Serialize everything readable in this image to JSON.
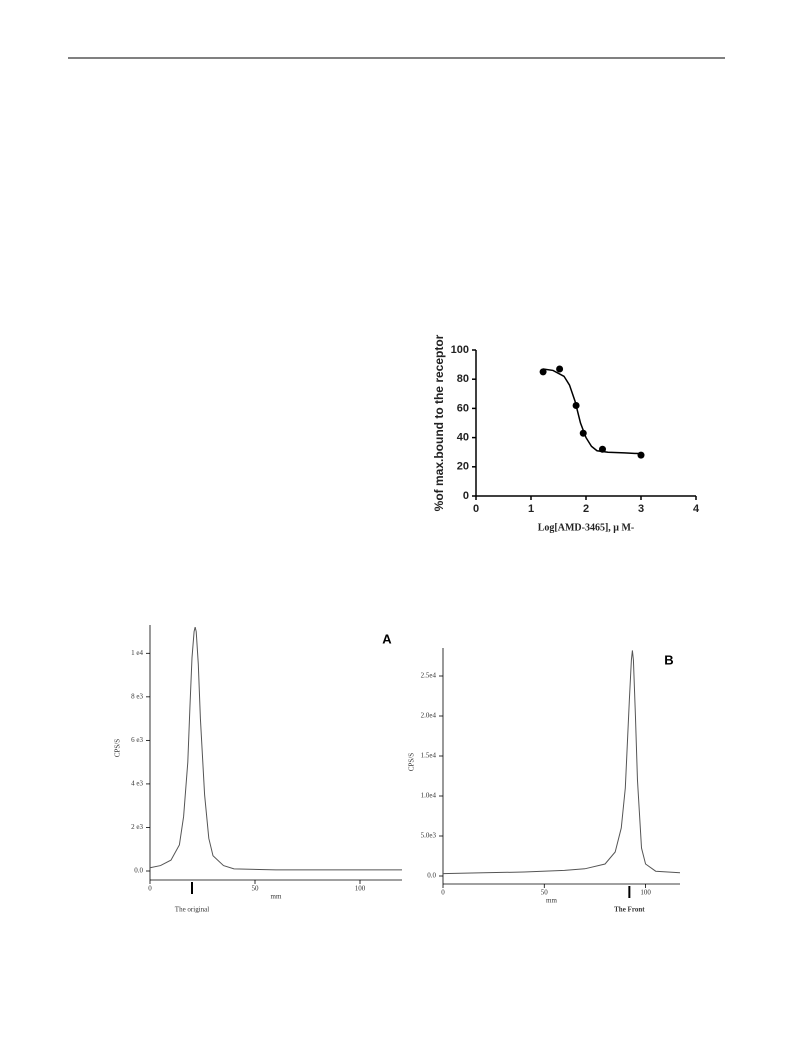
{
  "chart_data": [
    {
      "type": "scatter",
      "ylabel": "%of max.bound to the receptor",
      "xlabel": "Log[AMD-3465], μ M-",
      "x": [
        1.22,
        1.52,
        1.82,
        1.95,
        2.3,
        3.0
      ],
      "values": [
        85,
        87,
        62,
        43,
        32,
        28
      ],
      "fit": {
        "x": [
          1.22,
          1.4,
          1.6,
          1.7,
          1.8,
          1.9,
          2.0,
          2.1,
          2.2,
          2.4,
          2.7,
          3.0
        ],
        "values": [
          87,
          86,
          82,
          76,
          65,
          50,
          40,
          34,
          31,
          30,
          29.5,
          29
        ]
      },
      "color": "#000000",
      "xlim": [
        0,
        4
      ],
      "xticks": [
        0,
        1,
        2,
        3,
        4
      ],
      "ylim": [
        0,
        100
      ],
      "yticks": [
        0,
        20,
        40,
        60,
        80,
        100
      ]
    },
    {
      "type": "line",
      "panel_label": "A",
      "ylabel": "CPS/S",
      "xlabel": "mm",
      "annotation": "The original",
      "annotation_x": 20,
      "x": [
        0,
        5,
        10,
        14,
        16,
        18,
        19,
        20,
        21,
        21.5,
        22,
        23,
        24,
        26,
        28,
        30,
        35,
        40,
        60,
        120
      ],
      "values": [
        150,
        250,
        500,
        1200,
        2500,
        5000,
        7500,
        9800,
        11000,
        11200,
        11000,
        9500,
        7000,
        3500,
        1500,
        700,
        250,
        100,
        50,
        50
      ],
      "color": "#555555",
      "xlim": [
        0,
        120
      ],
      "xticks": [
        0,
        50,
        100
      ],
      "ylim": [
        0,
        11300
      ],
      "yticks": [
        {
          "value": 0,
          "label": "0.0"
        },
        {
          "value": 2000,
          "label": "2 e3"
        },
        {
          "value": 4000,
          "label": "4 e3"
        },
        {
          "value": 6000,
          "label": "6 e3"
        },
        {
          "value": 8000,
          "label": "8 e3"
        },
        {
          "value": 10000,
          "label": "1 e4"
        }
      ]
    },
    {
      "type": "line",
      "panel_label": "B",
      "ylabel": "CPS/S",
      "xlabel": "mm",
      "annotation": "The Front",
      "annotation_x": 92,
      "x": [
        0,
        20,
        40,
        60,
        70,
        80,
        85,
        88,
        90,
        92,
        93,
        93.5,
        94,
        95,
        96,
        98,
        100,
        105,
        117
      ],
      "values": [
        300,
        400,
        500,
        700,
        900,
        1500,
        3000,
        6000,
        11000,
        22000,
        27000,
        28200,
        27000,
        20000,
        12000,
        3500,
        1500,
        600,
        400
      ],
      "color": "#555555",
      "xlim": [
        0,
        117
      ],
      "xticks": [
        0,
        50,
        100
      ],
      "ylim": [
        0,
        28500
      ],
      "yticks": [
        {
          "value": 0,
          "label": "0.0"
        },
        {
          "value": 5000,
          "label": "5.0e3"
        },
        {
          "value": 10000,
          "label": "1.0e4"
        },
        {
          "value": 15000,
          "label": "1.5e4"
        },
        {
          "value": 20000,
          "label": "2.0e4"
        },
        {
          "value": 25000,
          "label": "2.5e4"
        }
      ]
    }
  ]
}
